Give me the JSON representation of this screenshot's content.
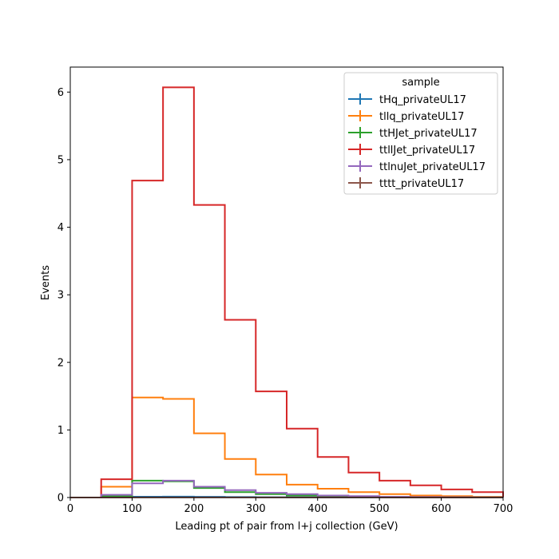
{
  "chart_data": {
    "type": "histogram-step",
    "xlabel": "Leading pt of pair from l+j collection (GeV)",
    "ylabel": "Events",
    "xlim": [
      0,
      700
    ],
    "ylim": [
      0,
      6.37
    ],
    "xticks": [
      0,
      100,
      200,
      300,
      400,
      500,
      600,
      700
    ],
    "yticks": [
      0,
      1,
      2,
      3,
      4,
      5,
      6
    ],
    "grid": false,
    "legend": {
      "title": "sample",
      "placement": "top-right"
    },
    "bin_edges": [
      0,
      50,
      100,
      150,
      200,
      250,
      300,
      350,
      400,
      450,
      500,
      550,
      600,
      650,
      700
    ],
    "series": [
      {
        "name": "tHq_privateUL17",
        "color": "#1f77b4",
        "values": [
          0,
          0.003,
          0.012,
          0.013,
          0.01,
          0.007,
          0.005,
          0.003,
          0.002,
          0.001,
          0.001,
          0.0005,
          0.0003,
          0.0002
        ]
      },
      {
        "name": "tllq_privateUL17",
        "color": "#ff7f0e",
        "values": [
          0,
          0.16,
          1.48,
          1.46,
          0.95,
          0.57,
          0.34,
          0.19,
          0.13,
          0.08,
          0.05,
          0.03,
          0.02,
          0.01
        ]
      },
      {
        "name": "ttHJet_privateUL17",
        "color": "#2ca02c",
        "values": [
          0,
          0.02,
          0.25,
          0.24,
          0.14,
          0.08,
          0.05,
          0.03,
          0.02,
          0.01,
          0.008,
          0.005,
          0.003,
          0.002
        ]
      },
      {
        "name": "ttllJet_privateUL17",
        "color": "#d62728",
        "values": [
          0,
          0.27,
          4.69,
          6.07,
          4.33,
          2.63,
          1.57,
          1.02,
          0.6,
          0.37,
          0.25,
          0.18,
          0.12,
          0.08
        ]
      },
      {
        "name": "ttlnuJet_privateUL17",
        "color": "#9467bd",
        "values": [
          0,
          0.04,
          0.21,
          0.25,
          0.16,
          0.11,
          0.07,
          0.05,
          0.03,
          0.02,
          0.01,
          0.008,
          0.005,
          0.003
        ]
      },
      {
        "name": "tttt_privateUL17",
        "color": "#8c564b",
        "values": [
          0,
          0,
          0.001,
          0.002,
          0.002,
          0.002,
          0.002,
          0.0015,
          0.001,
          0.0008,
          0.0005,
          0.0004,
          0.0003,
          0.0002
        ]
      }
    ]
  }
}
